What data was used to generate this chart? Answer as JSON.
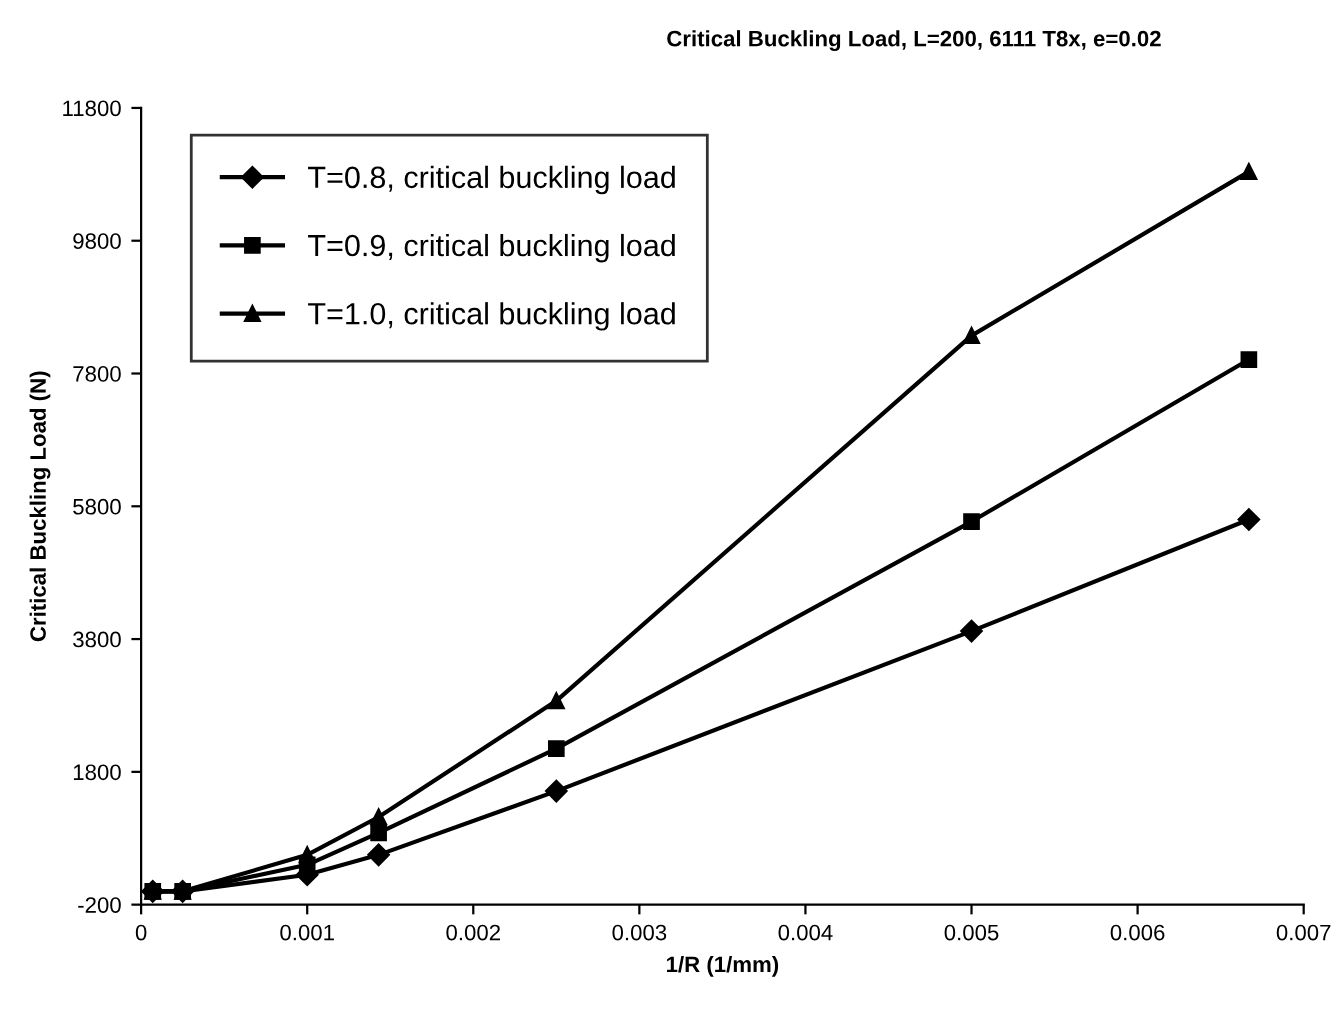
{
  "chart_data": {
    "type": "line",
    "title": "Critical Buckling Load, L=200, 6111 T8x, e=0.02",
    "xlabel": "1/R (1/mm)",
    "ylabel": "Critical Buckling Load (N)",
    "x": [
      7e-05,
      0.00025,
      0.001,
      0.00143,
      0.0025,
      0.005,
      0.00667
    ],
    "series": [
      {
        "name": "T=0.8, critical buckling load",
        "color": "#000000",
        "marker": "diamond",
        "values": [
          0,
          0,
          250,
          550,
          1510,
          3920,
          5600
        ]
      },
      {
        "name": "T=0.9, critical buckling load",
        "color": "#000000",
        "marker": "square",
        "values": [
          0,
          0,
          400,
          880,
          2150,
          5570,
          8010
        ]
      },
      {
        "name": "T=1.0, critical buckling load",
        "color": "#000000",
        "marker": "triangle",
        "values": [
          0,
          0,
          550,
          1120,
          2870,
          8370,
          10840
        ]
      }
    ],
    "xlim": [
      0,
      0.007
    ],
    "xticks": [
      0,
      0.001,
      0.002,
      0.003,
      0.004,
      0.005,
      0.006,
      0.007
    ],
    "ylim": [
      -200,
      11800
    ],
    "yticks": [
      -200,
      1800,
      3800,
      5800,
      7800,
      9800,
      11800
    ],
    "grid": false,
    "legend": "top left",
    "line_style": "solid"
  }
}
